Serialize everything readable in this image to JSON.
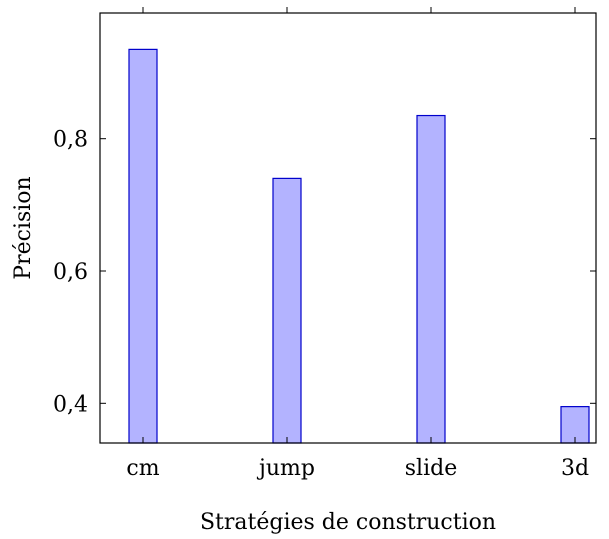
{
  "chart_data": {
    "type": "bar",
    "categories": [
      "cm",
      "jump",
      "slide",
      "3d"
    ],
    "values": [
      0.935,
      0.74,
      0.835,
      0.395
    ],
    "xlabel": "Stratégies de construction",
    "ylabel": "Précision",
    "ylim": [
      0.34,
      0.99
    ],
    "yticks": [
      0.4,
      0.6,
      0.8
    ],
    "ytick_labels": [
      "0,4",
      "0,6",
      "0,8"
    ],
    "bar_fill": "#b3b3ff",
    "bar_stroke": "#0000cc",
    "grid": false
  }
}
